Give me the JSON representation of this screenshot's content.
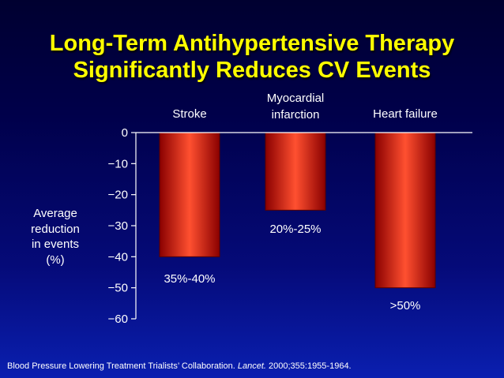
{
  "title": {
    "line1": "Long-Term Antihypertensive Therapy",
    "line2": "Significantly Reduces CV Events"
  },
  "chart_data": {
    "type": "bar",
    "categories": [
      [
        "Stroke"
      ],
      [
        "Myocardial",
        "infarction"
      ],
      [
        "Heart failure"
      ]
    ],
    "values": [
      -40,
      -25,
      -50
    ],
    "data_labels": [
      "35%-40%",
      "20%-25%",
      ">50%"
    ],
    "ylabel": [
      "Average",
      "reduction",
      "in events",
      "(%)"
    ],
    "ylim": [
      -60,
      0
    ],
    "yticks": [
      {
        "value": 0,
        "label": "0"
      },
      {
        "value": -10,
        "label": "−10"
      },
      {
        "value": -20,
        "label": "−20"
      },
      {
        "value": -30,
        "label": "−30"
      },
      {
        "value": -40,
        "label": "−40"
      },
      {
        "value": -50,
        "label": "−50"
      },
      {
        "value": -60,
        "label": "−60"
      }
    ],
    "bar_color": "#d01010",
    "bar_highlight": "#ff6a40",
    "axis_color": "#ffffff",
    "text_color": "#ffffff"
  },
  "citation": {
    "prefix": "Blood Pressure Lowering Treatment Trialists’ Collaboration.",
    "journal": "Lancet.",
    "suffix": "2000;355:1955-1964."
  }
}
